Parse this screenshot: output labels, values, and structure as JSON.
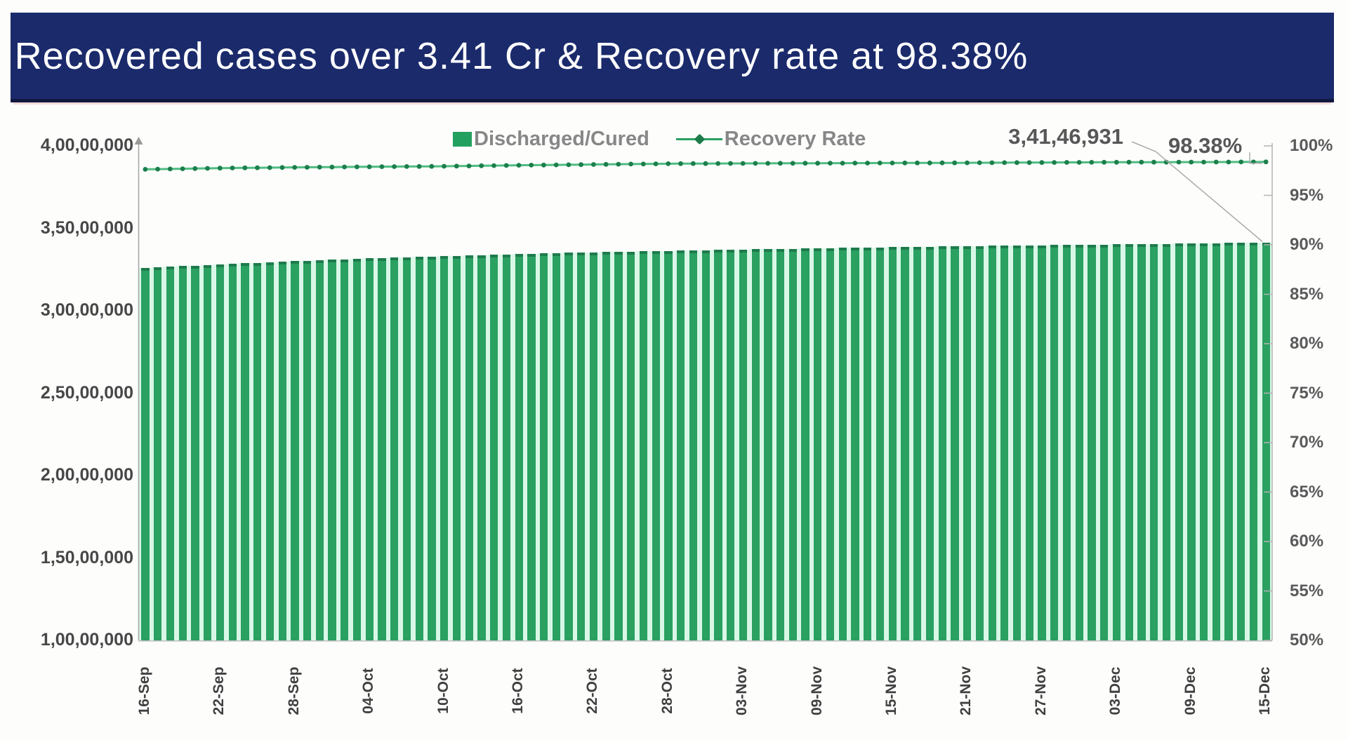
{
  "banner": {
    "title": "Recovered cases over 3.41 Cr & Recovery rate at 98.38%",
    "bg_color": "#1a2a6b"
  },
  "legend": {
    "bar_label": "Discharged/Cured",
    "line_label": "Recovery Rate"
  },
  "annotations": {
    "final_cases": "3,41,46,931",
    "final_rate": "98.38%"
  },
  "colors": {
    "bar_green": "#2aa061",
    "bar_gap_mint": "#d9f7e7",
    "bar_cap_green": "#1e7b4c",
    "line_green": "#4fbc82",
    "marker_green": "#1c7f4b",
    "axis_grey": "#a8a8a8",
    "banner_navy": "#1a2a6b"
  },
  "chart_data": {
    "type": "bar+line",
    "title": "Recovered cases over 3.41 Cr & Recovery rate at 98.38%",
    "bar_series_name": "Discharged/Cured",
    "line_series_name": "Recovery Rate",
    "bar_count": 91,
    "date_start": "16-Sep",
    "date_end": "15-Dec",
    "x_tick_labels": [
      "16-Sep",
      "22-Sep",
      "28-Sep",
      "04-Oct",
      "10-Oct",
      "16-Oct",
      "22-Oct",
      "28-Oct",
      "03-Nov",
      "09-Nov",
      "15-Nov",
      "21-Nov",
      "27-Nov",
      "03-Dec",
      "09-Dec",
      "15-Dec"
    ],
    "left_axis": {
      "tick_labels": [
        "4,00,00,000",
        "3,50,00,000",
        "3,00,00,000",
        "2,50,00,000",
        "2,00,00,000",
        "1,50,00,000",
        "1,00,00,000"
      ],
      "min": 10000000,
      "max": 40000000
    },
    "right_axis": {
      "tick_labels": [
        "100%",
        "95%",
        "90%",
        "85%",
        "80%",
        "75%",
        "70%",
        "65%",
        "60%",
        "55%",
        "50%"
      ],
      "min_pct": 50,
      "max_pct": 100
    },
    "anchors": {
      "note": "values readable at the 16 labeled dates; daily bars are linear interpolation between anchors",
      "indices": [
        0,
        6,
        12,
        18,
        24,
        30,
        36,
        42,
        48,
        54,
        60,
        66,
        72,
        78,
        84,
        90
      ],
      "dates": [
        "16-Sep",
        "22-Sep",
        "28-Sep",
        "04-Oct",
        "10-Oct",
        "16-Oct",
        "22-Oct",
        "28-Oct",
        "03-Nov",
        "09-Nov",
        "15-Nov",
        "21-Nov",
        "27-Nov",
        "03-Dec",
        "09-Dec",
        "15-Dec"
      ],
      "discharged_cured": [
        32598424,
        32815731,
        33014898,
        33175656,
        33320749,
        33439331,
        33548605,
        33627632,
        33712794,
        33787047,
        33856818,
        33922037,
        33977830,
        34028506,
        34077620,
        34146931
      ],
      "recovery_rate_pct": [
        97.63,
        97.75,
        97.83,
        97.89,
        97.94,
        98.04,
        98.12,
        98.2,
        98.23,
        98.25,
        98.27,
        98.29,
        98.32,
        98.35,
        98.36,
        98.38
      ]
    },
    "final_point": {
      "discharged_cured_label": "3,41,46,931",
      "recovery_rate_label": "98.38%"
    },
    "legend_position": "top-center",
    "grid": "off"
  }
}
